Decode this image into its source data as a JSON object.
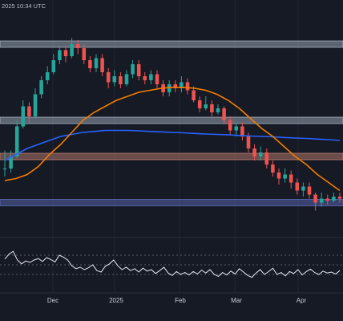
{
  "header": {
    "timestamp": "2025 10:34 UTC"
  },
  "colors": {
    "background": "#161a25",
    "up": "#26a69a",
    "down": "#ef5350",
    "ma_slow": "#2962ff",
    "ma_fast": "#f57c00",
    "indicator": "#e6e8ee",
    "zone_resistance": "#b2bfcf",
    "zone_mid": "#b2bfcf",
    "zone_support_orange": "#d0897a",
    "zone_support_blue": "#6474c8"
  },
  "chart_data": {
    "type": "candlestick",
    "x_axis": {
      "labels": [
        "Dec",
        "2025",
        "Feb",
        "Mar",
        "Apr"
      ]
    },
    "candles_scale": "normalized price units (0 = bottom of price pane, 100 = top)",
    "candles": [
      [
        24,
        24,
        33,
        20
      ],
      [
        24,
        30,
        33,
        22
      ],
      [
        30,
        45,
        48,
        29
      ],
      [
        45,
        55,
        58,
        44
      ],
      [
        55,
        50,
        57,
        47
      ],
      [
        50,
        61,
        64,
        49
      ],
      [
        61,
        68,
        70,
        59
      ],
      [
        68,
        72,
        75,
        66
      ],
      [
        72,
        78,
        81,
        71
      ],
      [
        78,
        83,
        85,
        76
      ],
      [
        83,
        80,
        85,
        77
      ],
      [
        80,
        86,
        89,
        79
      ],
      [
        86,
        84,
        88,
        81
      ],
      [
        84,
        78,
        86,
        76
      ],
      [
        78,
        74,
        80,
        72
      ],
      [
        74,
        79,
        81,
        72
      ],
      [
        79,
        72,
        81,
        70
      ],
      [
        72,
        67,
        74,
        64
      ],
      [
        67,
        70,
        73,
        65
      ],
      [
        70,
        66,
        72,
        64
      ],
      [
        66,
        71,
        73,
        65
      ],
      [
        71,
        76,
        78,
        69
      ],
      [
        76,
        70,
        78,
        68
      ],
      [
        70,
        68,
        72,
        66
      ],
      [
        68,
        71,
        73,
        66
      ],
      [
        71,
        66,
        73,
        64
      ],
      [
        66,
        62,
        68,
        60
      ],
      [
        62,
        66,
        68,
        60
      ],
      [
        66,
        64,
        68,
        62
      ],
      [
        64,
        67,
        70,
        62
      ],
      [
        67,
        63,
        69,
        61
      ],
      [
        63,
        58,
        65,
        57
      ],
      [
        58,
        54,
        60,
        52
      ],
      [
        54,
        56,
        60,
        53
      ],
      [
        56,
        52,
        58,
        50
      ],
      [
        52,
        54,
        56,
        51
      ],
      [
        54,
        48,
        55,
        46
      ],
      [
        48,
        43,
        50,
        41
      ],
      [
        43,
        45,
        47,
        40
      ],
      [
        45,
        40,
        47,
        38
      ],
      [
        40,
        34,
        42,
        32
      ],
      [
        34,
        30,
        36,
        28
      ],
      [
        30,
        32,
        35,
        28
      ],
      [
        32,
        26,
        34,
        24
      ],
      [
        26,
        22,
        28,
        20
      ],
      [
        22,
        19,
        24,
        16
      ],
      [
        19,
        21,
        24,
        17
      ],
      [
        21,
        17,
        23,
        14
      ],
      [
        17,
        13,
        19,
        11
      ],
      [
        13,
        15,
        17,
        10
      ],
      [
        15,
        11,
        17,
        9
      ],
      [
        11,
        7,
        12,
        3
      ],
      [
        7,
        9,
        12,
        5
      ],
      [
        9,
        8,
        11,
        6
      ],
      [
        8,
        10,
        12,
        7
      ],
      [
        10,
        9,
        12,
        7
      ]
    ],
    "ma_slow": [
      28,
      31,
      34,
      36,
      38,
      40,
      41,
      42,
      42.5,
      43,
      43,
      43,
      42.8,
      42.5,
      42.3,
      42,
      41.8,
      41.5,
      41.2,
      41,
      40.8,
      40.5,
      40.2,
      40,
      39.8,
      39.5,
      39.2,
      39,
      38.7,
      38.4,
      38
    ],
    "ma_fast": [
      18,
      19,
      21,
      25,
      31,
      36,
      42,
      48,
      52,
      55,
      58,
      60,
      62,
      63,
      64,
      64.5,
      64.5,
      64,
      63,
      61,
      58,
      54,
      49,
      44,
      40,
      35,
      30,
      26,
      21,
      17,
      13
    ],
    "zones": [
      {
        "name": "resistance",
        "level": 86
      },
      {
        "name": "mid",
        "level": 48
      },
      {
        "name": "support-orange",
        "level": 30
      },
      {
        "name": "support-blue",
        "level": 7
      }
    ],
    "indicator": {
      "values": [
        62,
        72,
        78,
        60,
        52,
        58,
        55,
        60,
        63,
        57,
        65,
        61,
        56,
        70,
        66,
        60,
        48,
        42,
        45,
        40,
        44,
        50,
        38,
        35,
        47,
        52,
        60,
        48,
        40,
        45,
        38,
        42,
        35,
        43,
        37,
        40,
        32,
        38,
        45,
        33,
        28,
        36,
        30,
        34,
        29,
        36,
        31,
        39,
        33,
        40,
        30,
        26,
        34,
        29,
        37,
        31,
        42,
        35,
        28,
        24,
        33,
        40,
        30,
        36,
        43,
        30,
        34,
        27,
        36,
        32,
        40,
        29,
        36,
        41,
        34,
        30,
        37,
        33,
        35,
        31,
        38
      ]
    }
  }
}
